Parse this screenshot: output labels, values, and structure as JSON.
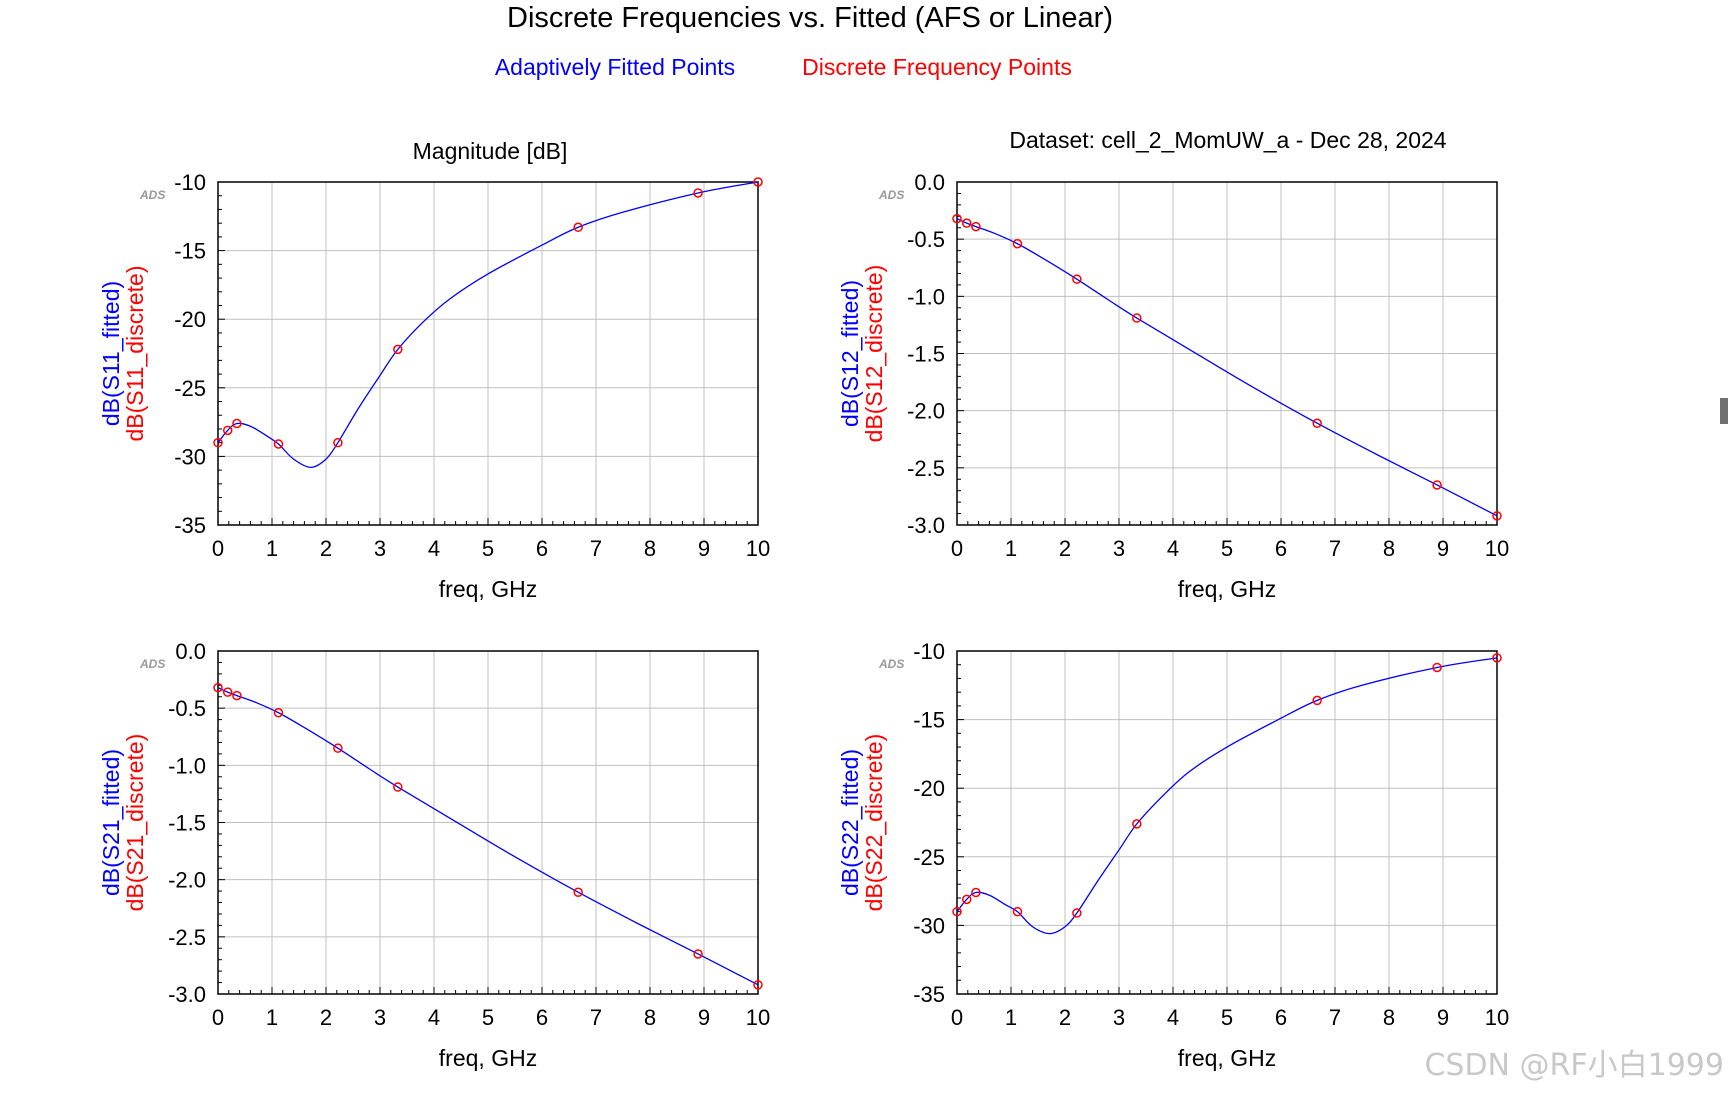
{
  "page": {
    "title": "Discrete Frequencies vs. Fitted (AFS or Linear)",
    "legend_fitted": "Adaptively Fitted Points",
    "legend_discrete": "Discrete Frequency Points",
    "subtitle_left": "Magnitude [dB]",
    "subtitle_right": "Dataset: cell_2_MomUW_a - Dec 28, 2024",
    "watermark": "CSDN @RF小白1999",
    "ads_logo": "ADS"
  },
  "colors": {
    "fitted": "#0000ff",
    "discrete": "#ff0000",
    "grid": "#c0c0c0",
    "axis": "#000000",
    "watermark": "#c8c8c8"
  },
  "chart_data": [
    {
      "id": "s11",
      "type": "line",
      "xlabel": "freq, GHz",
      "ylabel_fitted": "dB(S11_fitted)",
      "ylabel_discrete": "dB(S11_discrete)",
      "xlim": [
        0,
        10
      ],
      "ylim": [
        -35,
        -10
      ],
      "xticks": [
        "0",
        "1",
        "2",
        "3",
        "4",
        "5",
        "6",
        "7",
        "8",
        "9",
        "10"
      ],
      "yticks": [
        "-10",
        "-15",
        "-20",
        "-25",
        "-30",
        "-35"
      ],
      "ytick_values": [
        -10,
        -15,
        -20,
        -25,
        -30,
        -35
      ],
      "fitted": {
        "x": [
          0,
          0.18,
          0.35,
          0.6,
          0.9,
          1.12,
          1.4,
          1.72,
          2.0,
          2.22,
          2.6,
          3.0,
          3.33,
          3.8,
          4.3,
          5.0,
          6.0,
          6.67,
          7.5,
          8.89,
          10
        ],
        "y": [
          -29.0,
          -28.1,
          -27.6,
          -27.8,
          -28.5,
          -29.1,
          -30.2,
          -30.8,
          -30.2,
          -29.0,
          -26.5,
          -24.1,
          -22.2,
          -20.2,
          -18.5,
          -16.7,
          -14.6,
          -13.3,
          -12.2,
          -10.8,
          -10.0
        ]
      },
      "discrete": {
        "x": [
          0,
          0.18,
          0.35,
          1.12,
          2.22,
          3.33,
          6.67,
          8.89,
          10
        ],
        "y": [
          -29.0,
          -28.1,
          -27.6,
          -29.1,
          -29.0,
          -22.2,
          -13.3,
          -10.8,
          -10.0
        ]
      }
    },
    {
      "id": "s12",
      "type": "line",
      "xlabel": "freq, GHz",
      "ylabel_fitted": "dB(S12_fitted)",
      "ylabel_discrete": "dB(S12_discrete)",
      "xlim": [
        0,
        10
      ],
      "ylim": [
        -3.0,
        0.0
      ],
      "xticks": [
        "0",
        "1",
        "2",
        "3",
        "4",
        "5",
        "6",
        "7",
        "8",
        "9",
        "10"
      ],
      "yticks": [
        "0.0",
        "-0.5",
        "-1.0",
        "-1.5",
        "-2.0",
        "-2.5",
        "-3.0"
      ],
      "ytick_values": [
        0.0,
        -0.5,
        -1.0,
        -1.5,
        -2.0,
        -2.5,
        -3.0
      ],
      "fitted": {
        "x": [
          0,
          0.18,
          0.35,
          0.7,
          1.12,
          1.6,
          2.22,
          2.8,
          3.33,
          4.5,
          5.5,
          6.67,
          7.8,
          8.89,
          10
        ],
        "y": [
          -0.32,
          -0.36,
          -0.39,
          -0.45,
          -0.54,
          -0.67,
          -0.85,
          -1.03,
          -1.19,
          -1.52,
          -1.8,
          -2.11,
          -2.39,
          -2.65,
          -2.92
        ]
      },
      "discrete": {
        "x": [
          0,
          0.18,
          0.35,
          1.12,
          2.22,
          3.33,
          6.67,
          8.89,
          10
        ],
        "y": [
          -0.32,
          -0.36,
          -0.39,
          -0.54,
          -0.85,
          -1.19,
          -2.11,
          -2.65,
          -2.92
        ]
      }
    },
    {
      "id": "s21",
      "type": "line",
      "xlabel": "freq, GHz",
      "ylabel_fitted": "dB(S21_fitted)",
      "ylabel_discrete": "dB(S21_discrete)",
      "xlim": [
        0,
        10
      ],
      "ylim": [
        -3.0,
        0.0
      ],
      "xticks": [
        "0",
        "1",
        "2",
        "3",
        "4",
        "5",
        "6",
        "7",
        "8",
        "9",
        "10"
      ],
      "yticks": [
        "0.0",
        "-0.5",
        "-1.0",
        "-1.5",
        "-2.0",
        "-2.5",
        "-3.0"
      ],
      "ytick_values": [
        0.0,
        -0.5,
        -1.0,
        -1.5,
        -2.0,
        -2.5,
        -3.0
      ],
      "fitted": {
        "x": [
          0,
          0.18,
          0.35,
          0.7,
          1.12,
          1.6,
          2.22,
          2.8,
          3.33,
          4.5,
          5.5,
          6.67,
          7.8,
          8.89,
          10
        ],
        "y": [
          -0.32,
          -0.36,
          -0.39,
          -0.45,
          -0.54,
          -0.67,
          -0.85,
          -1.03,
          -1.19,
          -1.52,
          -1.8,
          -2.11,
          -2.39,
          -2.65,
          -2.92
        ]
      },
      "discrete": {
        "x": [
          0,
          0.18,
          0.35,
          1.12,
          2.22,
          3.33,
          6.67,
          8.89,
          10
        ],
        "y": [
          -0.32,
          -0.36,
          -0.39,
          -0.54,
          -0.85,
          -1.19,
          -2.11,
          -2.65,
          -2.92
        ]
      }
    },
    {
      "id": "s22",
      "type": "line",
      "xlabel": "freq, GHz",
      "ylabel_fitted": "dB(S22_fitted)",
      "ylabel_discrete": "dB(S22_discrete)",
      "xlim": [
        0,
        10
      ],
      "ylim": [
        -35,
        -10
      ],
      "xticks": [
        "0",
        "1",
        "2",
        "3",
        "4",
        "5",
        "6",
        "7",
        "8",
        "9",
        "10"
      ],
      "yticks": [
        "-10",
        "-15",
        "-20",
        "-25",
        "-30",
        "-35"
      ],
      "ytick_values": [
        -10,
        -15,
        -20,
        -25,
        -30,
        -35
      ],
      "fitted": {
        "x": [
          0,
          0.18,
          0.35,
          0.6,
          0.9,
          1.12,
          1.4,
          1.72,
          2.0,
          2.22,
          2.6,
          3.0,
          3.33,
          3.8,
          4.3,
          5.0,
          6.0,
          6.67,
          7.5,
          8.89,
          10
        ],
        "y": [
          -29.0,
          -28.1,
          -27.6,
          -27.8,
          -28.5,
          -29.0,
          -30.1,
          -30.6,
          -30.1,
          -29.1,
          -26.8,
          -24.5,
          -22.6,
          -20.6,
          -18.8,
          -17.0,
          -14.9,
          -13.6,
          -12.5,
          -11.2,
          -10.5
        ]
      },
      "discrete": {
        "x": [
          0,
          0.18,
          0.35,
          1.12,
          2.22,
          3.33,
          6.67,
          8.89,
          10
        ],
        "y": [
          -29.0,
          -28.1,
          -27.6,
          -29.0,
          -29.1,
          -22.6,
          -13.6,
          -11.2,
          -10.5
        ]
      }
    }
  ]
}
